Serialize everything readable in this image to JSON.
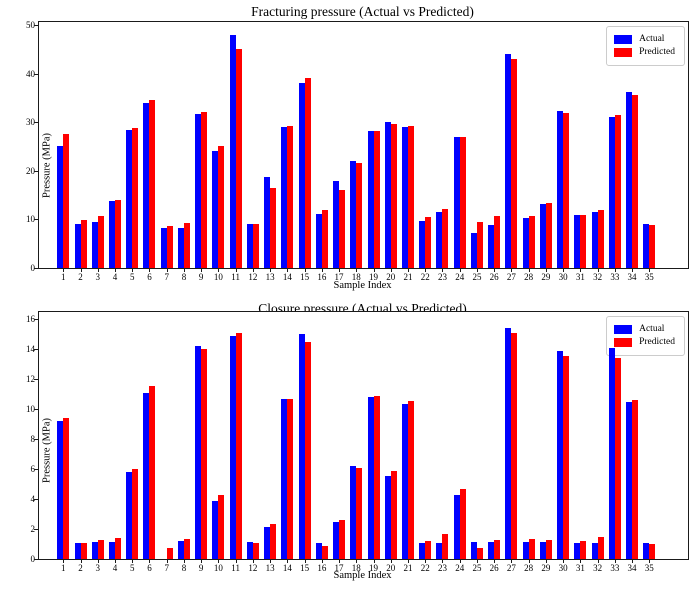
{
  "colors": {
    "actual": "#0000ff",
    "predicted": "#ff0000",
    "spine": "#1a1a1a",
    "background": "#ffffff"
  },
  "chart_data": [
    {
      "type": "bar",
      "title": "Fracturing pressure (Actual vs Predicted)",
      "xlabel": "Sample Index",
      "ylabel": "Pressure (MPa)",
      "categories": [
        "1",
        "2",
        "3",
        "4",
        "5",
        "6",
        "7",
        "8",
        "9",
        "10",
        "11",
        "12",
        "13",
        "14",
        "15",
        "16",
        "17",
        "18",
        "19",
        "20",
        "21",
        "22",
        "23",
        "24",
        "25",
        "26",
        "27",
        "28",
        "29",
        "30",
        "31",
        "32",
        "33",
        "34",
        "35"
      ],
      "yticks": [
        0,
        10,
        20,
        30,
        40,
        50
      ],
      "ylim": [
        0,
        50.6
      ],
      "grid": false,
      "legend_position": "upper right",
      "series": [
        {
          "name": "Actual",
          "color": "#0000ff",
          "values": [
            25.0,
            9.0,
            9.5,
            13.8,
            28.3,
            34.0,
            8.2,
            8.3,
            31.6,
            24.0,
            48.0,
            9.0,
            18.8,
            29.0,
            38.0,
            11.2,
            18.0,
            22.0,
            28.2,
            30.0,
            29.1,
            9.6,
            11.5,
            27.0,
            7.2,
            8.9,
            44.0,
            10.3,
            13.2,
            32.3,
            10.9,
            11.6,
            31.1,
            36.2,
            9.0
          ]
        },
        {
          "name": "Predicted",
          "color": "#ff0000",
          "values": [
            27.5,
            9.9,
            10.6,
            14.0,
            28.7,
            34.6,
            8.7,
            9.3,
            32.0,
            25.0,
            45.0,
            9.1,
            16.5,
            29.3,
            39.1,
            11.9,
            16.1,
            21.5,
            28.2,
            29.7,
            29.3,
            10.4,
            12.1,
            27.0,
            9.4,
            10.7,
            42.9,
            10.8,
            13.4,
            31.9,
            10.9,
            11.9,
            31.4,
            35.6,
            8.9
          ]
        }
      ]
    },
    {
      "type": "bar",
      "title": "Closure pressure (Actual vs Predicted)",
      "xlabel": "Sample Index",
      "ylabel": "Pressure (MPa)",
      "categories": [
        "1",
        "2",
        "3",
        "4",
        "5",
        "6",
        "7",
        "8",
        "9",
        "10",
        "11",
        "12",
        "13",
        "14",
        "15",
        "16",
        "17",
        "18",
        "19",
        "20",
        "21",
        "22",
        "23",
        "24",
        "25",
        "26",
        "27",
        "28",
        "29",
        "30",
        "31",
        "32",
        "33",
        "34",
        "35"
      ],
      "yticks": [
        0,
        2,
        4,
        6,
        8,
        10,
        12,
        14,
        16
      ],
      "ylim": [
        0,
        16.5
      ],
      "grid": false,
      "legend_position": "upper right",
      "series": [
        {
          "name": "Actual",
          "color": "#0000ff",
          "values": [
            9.2,
            1.1,
            1.15,
            1.15,
            5.8,
            11.1,
            0.0,
            1.2,
            14.25,
            3.9,
            14.9,
            1.15,
            2.15,
            10.7,
            15.0,
            1.1,
            2.45,
            6.2,
            10.8,
            5.55,
            10.35,
            1.1,
            1.1,
            4.25,
            1.15,
            1.15,
            15.45,
            1.15,
            1.15,
            13.9,
            1.1,
            1.05,
            14.1,
            10.5,
            1.1
          ]
        },
        {
          "name": "Predicted",
          "color": "#ff0000",
          "values": [
            9.45,
            1.05,
            1.3,
            1.4,
            6.0,
            11.55,
            0.75,
            1.35,
            14.0,
            4.25,
            15.1,
            1.1,
            2.35,
            10.7,
            14.5,
            0.9,
            2.6,
            6.1,
            10.9,
            5.9,
            10.55,
            1.2,
            1.65,
            4.7,
            0.75,
            1.3,
            15.1,
            1.35,
            1.25,
            13.55,
            1.2,
            1.45,
            13.4,
            10.65,
            1.0
          ]
        }
      ]
    }
  ]
}
